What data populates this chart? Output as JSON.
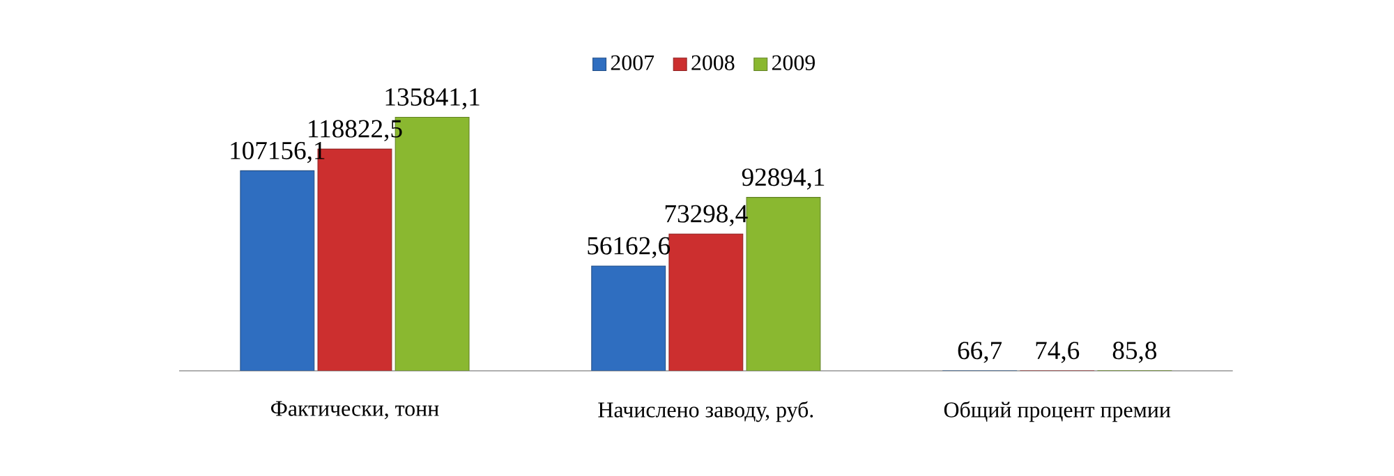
{
  "chart_data": {
    "type": "bar",
    "categories": [
      "Фактически, тонн",
      "Начислено заводу, руб.",
      "Общий процент премии"
    ],
    "series": [
      {
        "name": "2007",
        "color": "#2f6ec0",
        "values": [
          107156.1,
          56162.6,
          66.7
        ],
        "value_labels": [
          "107156,1",
          "56162,6",
          "66,7"
        ]
      },
      {
        "name": "2008",
        "color": "#cc2f2f",
        "values": [
          118822.5,
          73298.4,
          74.6
        ],
        "value_labels": [
          "118822,5",
          "73298,4",
          "74,6"
        ]
      },
      {
        "name": "2009",
        "color": "#8ab830",
        "values": [
          135841.1,
          92894.1,
          85.8
        ],
        "value_labels": [
          "135841,1",
          "92894,1",
          "85,8"
        ]
      }
    ],
    "legend": "top"
  }
}
